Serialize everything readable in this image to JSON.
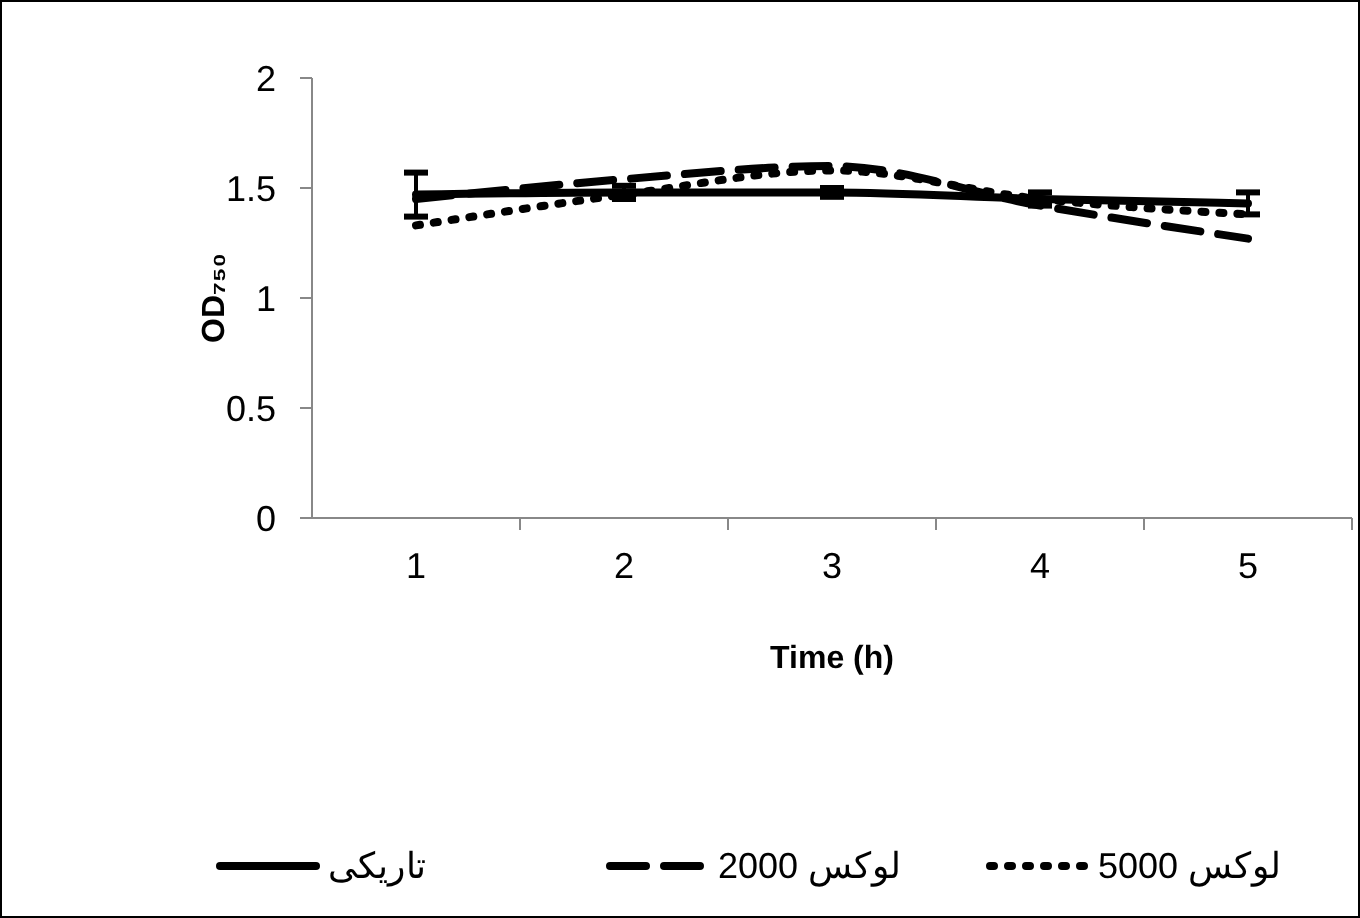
{
  "chart_data": {
    "type": "line",
    "xlabel": "Time (h)",
    "ylabel": "OD₇₅₀",
    "categories": [
      "1",
      "2",
      "3",
      "4",
      "5"
    ],
    "series": [
      {
        "name": "تاریکی",
        "color": "#000000",
        "line_style": "solid",
        "values": [
          1.47,
          1.48,
          1.48,
          1.45,
          1.43
        ],
        "errors": [
          0.1,
          0.03,
          0.02,
          0.03,
          0.05
        ]
      },
      {
        "name": "2000 لوکس",
        "color": "#000000",
        "line_style": "dashed",
        "values": [
          1.45,
          1.54,
          1.6,
          1.42,
          1.27
        ]
      },
      {
        "name": "5000 لوکس",
        "color": "#000000",
        "line_style": "dotted",
        "values": [
          1.33,
          1.47,
          1.58,
          1.45,
          1.38
        ]
      }
    ],
    "ylim": [
      0,
      2
    ],
    "yticks": [
      0,
      0.5,
      1,
      1.5,
      2
    ],
    "grid": false,
    "legend": "bottom"
  }
}
